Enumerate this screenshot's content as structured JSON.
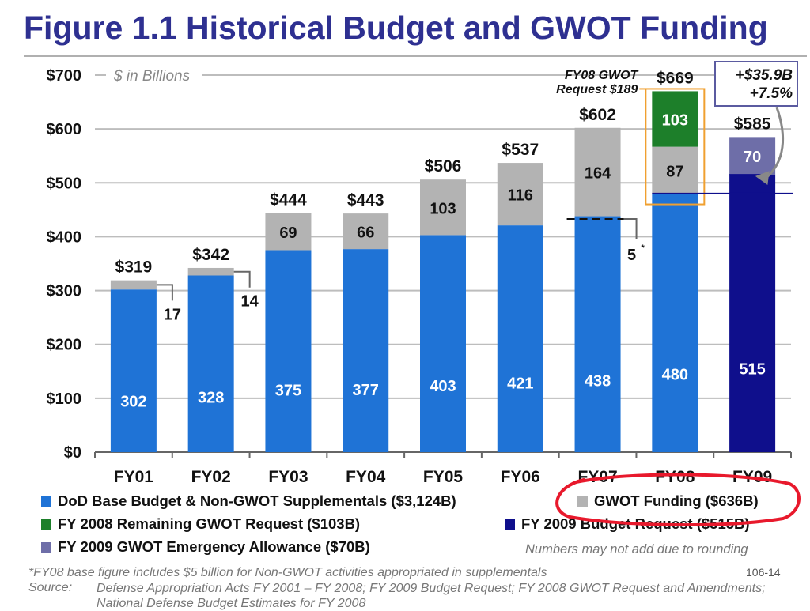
{
  "page": {
    "title": "Figure 1.1 Historical Budget and GWOT Funding",
    "units_note": "$ in Billions",
    "rounding_note": "Numbers may not add due to rounding",
    "footnote": "*FY08 base figure includes $5 billion for Non-GWOT activities appropriated in supplementals",
    "slide_number": "106-14",
    "source_label": "Source:",
    "source_text": "Defense Appropriation Acts FY 2001 – FY 2008; FY 2009 Budget Request; FY 2008 GWOT Request and Amendments; National Defense Budget Estimates for FY 2008"
  },
  "colors": {
    "base": "#1f73d6",
    "gwot": "#b3b3b3",
    "remaining_gwot": "#1d7f2a",
    "fy09_request": "#0f0f8c",
    "emergency_allowance": "#6e6ea8",
    "title": "#2e3091",
    "highlight_circle": "#e8192c",
    "callout_box": "#f0a030"
  },
  "legend": {
    "base": "DoD Base Budget & Non-GWOT Supplementals ($3,124B)",
    "gwot": "GWOT Funding ($636B)",
    "remaining_gwot": "FY 2008 Remaining GWOT Request ($103B)",
    "fy09_request": "FY 2009 Budget Request ($515B)",
    "emergency_allowance": "FY 2009 GWOT Emergency Allowance ($70B)"
  },
  "chart_data": {
    "type": "bar",
    "stacked": true,
    "categories": [
      "FY01",
      "FY02",
      "FY03",
      "FY04",
      "FY05",
      "FY06",
      "FY07",
      "FY08",
      "FY09"
    ],
    "series": [
      {
        "name": "DoD Base Budget & Non-GWOT Supplementals ($3,124B)",
        "values": [
          302,
          328,
          375,
          377,
          403,
          421,
          438,
          480,
          null
        ],
        "labels": [
          "302",
          "328",
          "375",
          "377",
          "403",
          "421",
          "438",
          "480",
          ""
        ]
      },
      {
        "name": "GWOT Funding ($636B)",
        "values": [
          17,
          14,
          69,
          66,
          103,
          116,
          164,
          87,
          null
        ],
        "labels": [
          "17",
          "14",
          "69",
          "66",
          "103",
          "116",
          "164",
          "87",
          ""
        ]
      },
      {
        "name": "FY 2008 Remaining GWOT Request ($103B)",
        "values": [
          null,
          null,
          null,
          null,
          null,
          null,
          null,
          103,
          null
        ],
        "labels": [
          "",
          "",
          "",
          "",
          "",
          "",
          "",
          "103",
          ""
        ]
      },
      {
        "name": "FY 2009 Budget Request ($515B)",
        "values": [
          null,
          null,
          null,
          null,
          null,
          null,
          null,
          null,
          515
        ],
        "labels": [
          "",
          "",
          "",
          "",
          "",
          "",
          "",
          "",
          "515"
        ]
      },
      {
        "name": "FY 2009 GWOT Emergency Allowance ($70B)",
        "values": [
          null,
          null,
          null,
          null,
          null,
          null,
          null,
          null,
          70
        ],
        "labels": [
          "",
          "",
          "",
          "",
          "",
          "",
          "",
          "",
          "70"
        ]
      }
    ],
    "totals": [
      "$319",
      "$342",
      "$444",
      "$443",
      "$506",
      "$537",
      "$602",
      "$669",
      "$585"
    ],
    "y_ticks": [
      0,
      100,
      200,
      300,
      400,
      500,
      600,
      700
    ],
    "y_tick_labels": [
      "$0",
      "$100",
      "$200",
      "$300",
      "$400",
      "$500",
      "$600",
      "$700"
    ],
    "ylim": [
      0,
      700
    ],
    "grid": true,
    "annotations": {
      "fy07_non_gwot": "5",
      "fy07_non_gwot_marker": "*",
      "fy08_gwot_request_line1": "FY08 GWOT",
      "fy08_gwot_request_line2": "Request $189",
      "change_line1": "+$35.9B",
      "change_line2": "+7.5%"
    }
  }
}
